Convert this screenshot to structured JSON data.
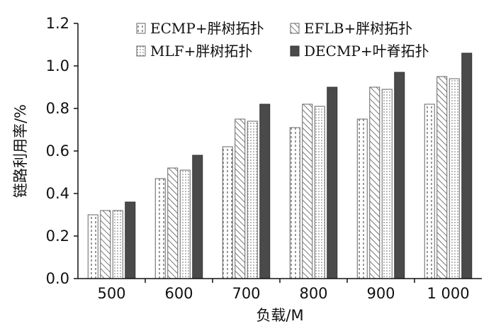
{
  "chart_data": {
    "type": "bar",
    "xlabel": "负载/M",
    "ylabel": "链路利用率/%",
    "categories": [
      "500",
      "600",
      "700",
      "800",
      "900",
      "1 000"
    ],
    "ylim": [
      0,
      1.2
    ],
    "yticks": [
      "0.0",
      "0.2",
      "0.4",
      "0.6",
      "0.8",
      "1.0",
      "1.2"
    ],
    "grid": false,
    "legend_position": "top",
    "series": [
      {
        "name": "ECMP+胖树拓扑",
        "values": [
          0.3,
          0.47,
          0.62,
          0.71,
          0.75,
          0.82
        ],
        "pattern": "vertical-dashes"
      },
      {
        "name": "EFLB+胖树拓扑",
        "values": [
          0.32,
          0.52,
          0.75,
          0.82,
          0.9,
          0.95
        ],
        "pattern": "diagonal-hatch"
      },
      {
        "name": "MLF+胖树拓扑",
        "values": [
          0.32,
          0.51,
          0.74,
          0.81,
          0.89,
          0.94
        ],
        "pattern": "dots"
      },
      {
        "name": "DECMP+叶脊拓扑",
        "values": [
          0.36,
          0.58,
          0.82,
          0.9,
          0.97,
          1.06
        ],
        "pattern": "solid-dark"
      }
    ]
  }
}
